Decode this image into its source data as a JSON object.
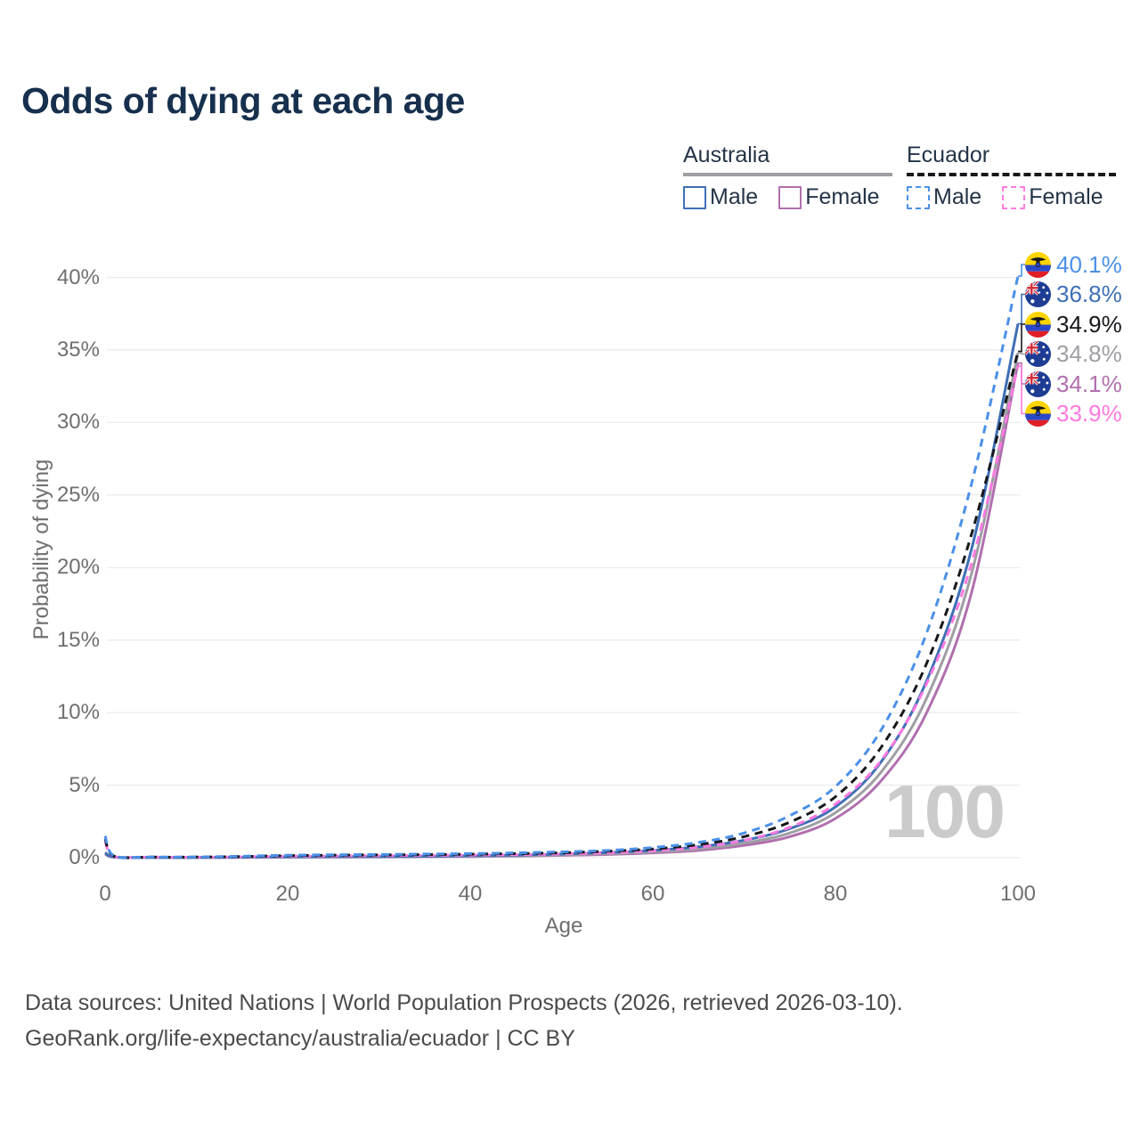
{
  "title": "Odds of dying at each age",
  "legend": {
    "groups": [
      {
        "label": "Australia",
        "line_style": "solid",
        "underline_color": "#9e9ea3",
        "items": [
          {
            "label": "Male",
            "color": "#3f6fb5"
          },
          {
            "label": "Female",
            "color": "#b06fae"
          }
        ]
      },
      {
        "label": "Ecuador",
        "line_style": "dashed",
        "underline_color": "#17181c",
        "items": [
          {
            "label": "Male",
            "color": "#4a90e8"
          },
          {
            "label": "Female",
            "color": "#ff7ae1"
          }
        ]
      }
    ]
  },
  "chart_data": {
    "type": "line",
    "title": "Odds of dying at each age",
    "xlabel": "Age",
    "ylabel": "Probability of dying",
    "xlim": [
      0,
      100
    ],
    "ylim": [
      0,
      40
    ],
    "x_ticks": [
      0,
      20,
      40,
      60,
      80,
      100
    ],
    "y_ticks": [
      0,
      5,
      10,
      15,
      20,
      25,
      30,
      35,
      40
    ],
    "y_tick_suffix": "%",
    "grid": "horizontal",
    "legend_position": "top-right",
    "watermark": "100",
    "ages": [
      0,
      1,
      5,
      10,
      15,
      20,
      25,
      30,
      35,
      40,
      45,
      50,
      55,
      60,
      65,
      70,
      75,
      80,
      85,
      90,
      95,
      100
    ],
    "series": [
      {
        "id": "australia-female",
        "country": "Australia",
        "sex": "Female",
        "color": "#b06fae",
        "dash": false,
        "flag": "australia",
        "end_label": "34.1%",
        "end_value": 34.1,
        "values": [
          0.25,
          0.03,
          0.008,
          0.008,
          0.02,
          0.03,
          0.035,
          0.045,
          0.06,
          0.08,
          0.11,
          0.16,
          0.22,
          0.33,
          0.5,
          0.85,
          1.45,
          2.7,
          5.3,
          10.0,
          18.5,
          34.1
        ]
      },
      {
        "id": "australia-combined",
        "country": "Australia",
        "sex": "Both",
        "color": "#9e9ea3",
        "dash": false,
        "flag": "australia",
        "end_label": "34.8%",
        "end_value": 34.8,
        "values": [
          0.3,
          0.035,
          0.01,
          0.01,
          0.025,
          0.045,
          0.055,
          0.065,
          0.08,
          0.1,
          0.14,
          0.2,
          0.28,
          0.4,
          0.6,
          1.0,
          1.7,
          3.1,
          5.9,
          11.0,
          19.8,
          34.8
        ]
      },
      {
        "id": "australia-male",
        "country": "Australia",
        "sex": "Male",
        "color": "#3f6fb5",
        "dash": false,
        "flag": "australia",
        "end_label": "36.8%",
        "end_value": 36.8,
        "values": [
          0.35,
          0.04,
          0.01,
          0.01,
          0.03,
          0.06,
          0.07,
          0.08,
          0.1,
          0.13,
          0.18,
          0.25,
          0.35,
          0.5,
          0.75,
          1.2,
          2.0,
          3.5,
          6.6,
          12.2,
          21.5,
          36.8
        ]
      },
      {
        "id": "ecuador-female",
        "country": "Ecuador",
        "sex": "Female",
        "color": "#ff7ae1",
        "dash": true,
        "flag": "ecuador",
        "end_label": "33.9%",
        "end_value": 33.9,
        "values": [
          1.1,
          0.09,
          0.04,
          0.03,
          0.06,
          0.1,
          0.12,
          0.14,
          0.16,
          0.18,
          0.21,
          0.26,
          0.34,
          0.48,
          0.72,
          1.2,
          2.1,
          3.7,
          6.7,
          12.0,
          20.5,
          33.9
        ]
      },
      {
        "id": "ecuador-combined",
        "country": "Ecuador",
        "sex": "Both",
        "color": "#17181c",
        "dash": true,
        "flag": "ecuador",
        "end_label": "34.9%",
        "end_value": 34.9,
        "values": [
          1.3,
          0.1,
          0.04,
          0.04,
          0.08,
          0.14,
          0.17,
          0.19,
          0.21,
          0.24,
          0.28,
          0.34,
          0.44,
          0.6,
          0.9,
          1.45,
          2.45,
          4.2,
          7.6,
          13.4,
          22.5,
          34.9
        ]
      },
      {
        "id": "ecuador-male",
        "country": "Ecuador",
        "sex": "Male",
        "color": "#4a90e8",
        "dash": true,
        "flag": "ecuador",
        "end_label": "40.1%",
        "end_value": 40.1,
        "values": [
          1.5,
          0.12,
          0.05,
          0.05,
          0.1,
          0.17,
          0.2,
          0.22,
          0.25,
          0.28,
          0.33,
          0.4,
          0.5,
          0.7,
          1.05,
          1.7,
          2.9,
          4.9,
          8.8,
          15.5,
          26.0,
          40.1
        ]
      }
    ]
  },
  "footer": {
    "line1": "Data sources: United Nations | World Population Prospects (2026, retrieved 2026-03-10).",
    "line2": "GeoRank.org/life-expectancy/australia/ecuador | CC BY"
  }
}
